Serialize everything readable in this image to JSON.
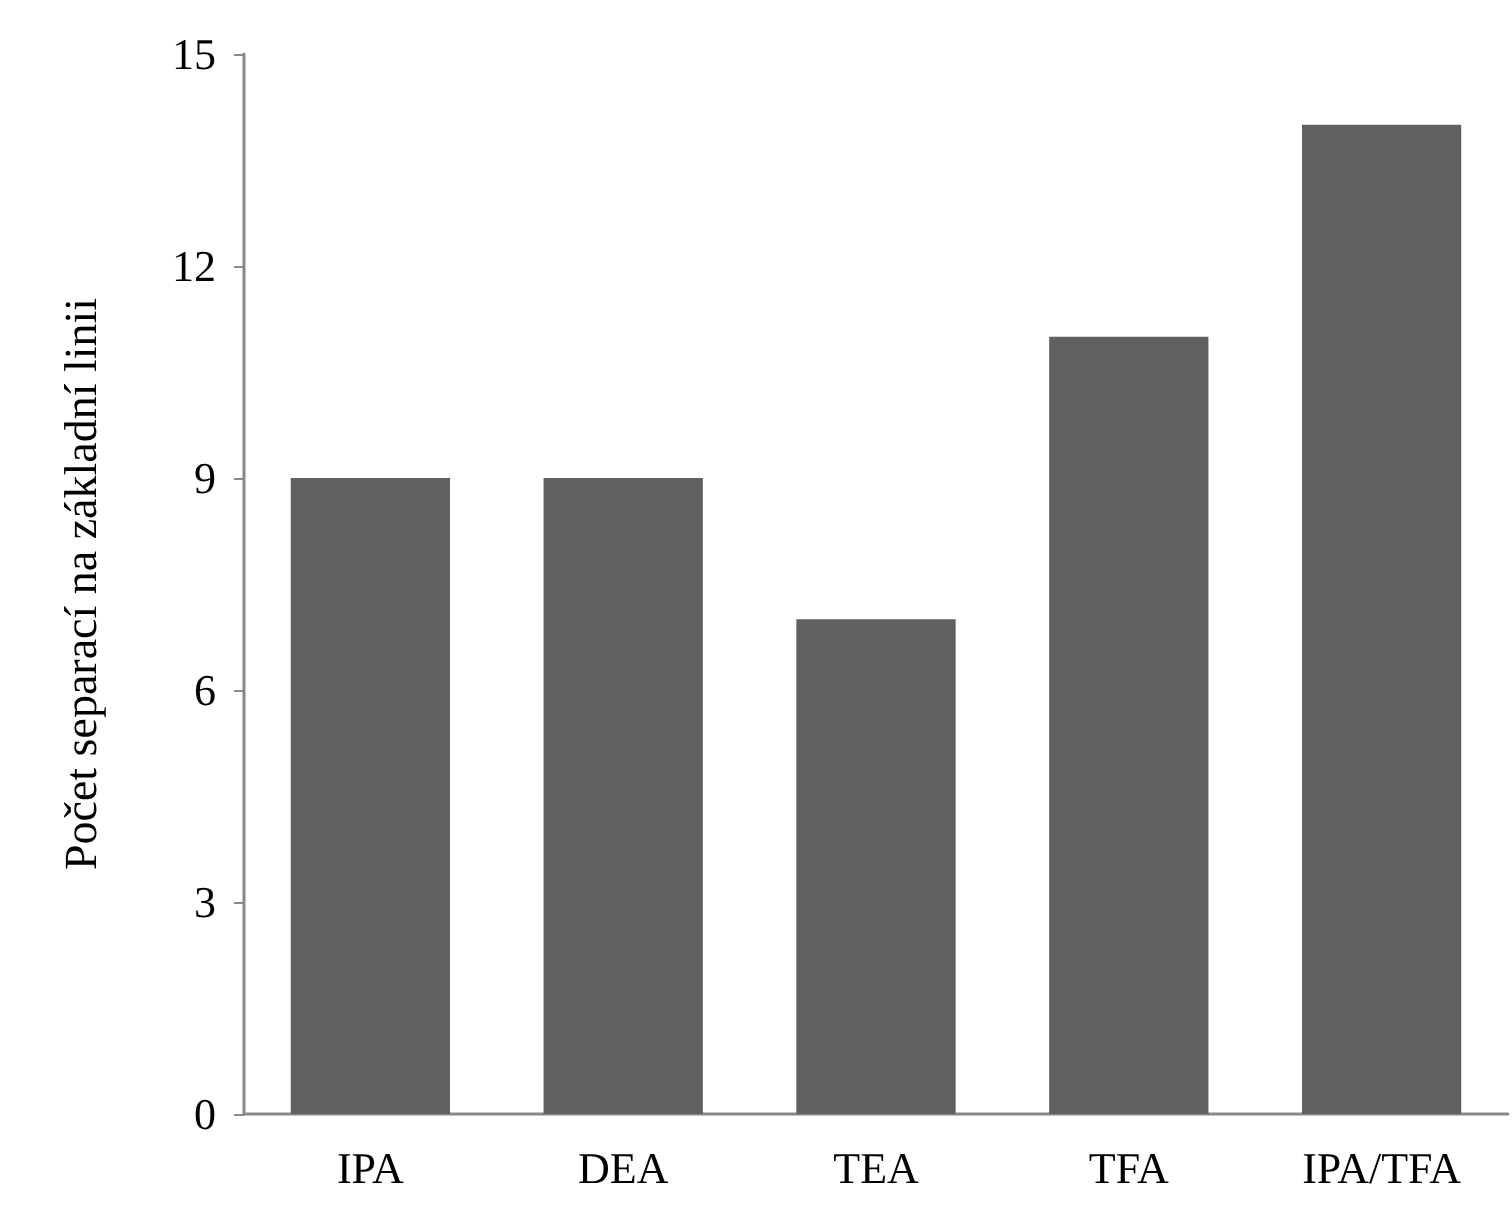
{
  "chart_data": {
    "type": "bar",
    "ylabel": "Počet separací na základní linii",
    "categories": [
      "IPA",
      "DEA",
      "TEA",
      "TFA",
      "IPA/TFA"
    ],
    "values": [
      9,
      9,
      7,
      11,
      14
    ],
    "color": "#606060",
    "ylim": [
      0,
      15
    ],
    "yticks": [
      0,
      3,
      6,
      9,
      12,
      15
    ],
    "grid": false
  }
}
